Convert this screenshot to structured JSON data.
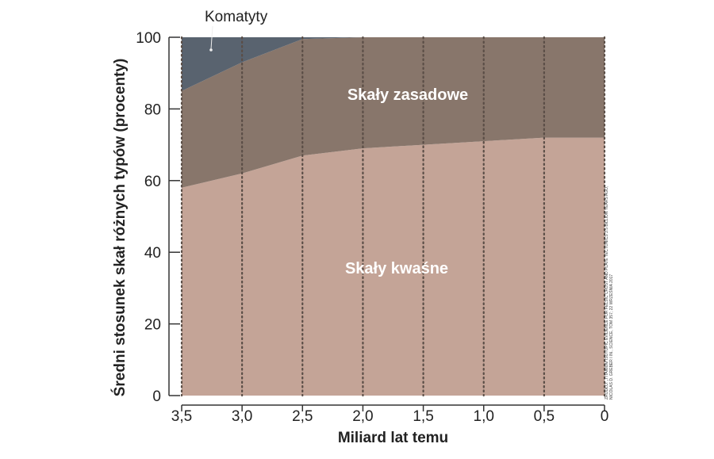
{
  "chart_data": {
    "type": "area",
    "stacked": true,
    "x": [
      3.5,
      3.0,
      2.5,
      2.0,
      1.5,
      1.0,
      0.5,
      0
    ],
    "x_tick_labels": [
      "3,5",
      "3,0",
      "2,5",
      "2,0",
      "1,5",
      "1,0",
      "0,5",
      "0"
    ],
    "xlabel": "Miliard lat temu",
    "ylabel": "Średni stosunek skał różnych typów (procenty)",
    "ylim": [
      0,
      100
    ],
    "y_ticks": [
      0,
      20,
      40,
      60,
      80,
      100
    ],
    "grid": "vertical dotted",
    "series": [
      {
        "name": "Skały kwaśne",
        "values": [
          58,
          62,
          67,
          69,
          70,
          71,
          72,
          72
        ],
        "color": "#c4a497"
      },
      {
        "name": "Skały zasadowe",
        "values": [
          27,
          31,
          32.5,
          31,
          30,
          29,
          28,
          28
        ],
        "color": "#88766b"
      },
      {
        "name": "Komatyty",
        "values": [
          15,
          7,
          0.5,
          0,
          0,
          0,
          0,
          0
        ],
        "color": "#59636f"
      }
    ],
    "source_note": "ŹRÓDŁO: „TITANIUM ISOTOPIC EVIDENCE FOR FELSIC CRUST AND PLATE TECTONICS 3.5 BILLION YEARS AGO,” NICOLAS D. GREBER I IN., SCIENCE, TOM 357; 22 WRZEŚNIA 2017"
  }
}
